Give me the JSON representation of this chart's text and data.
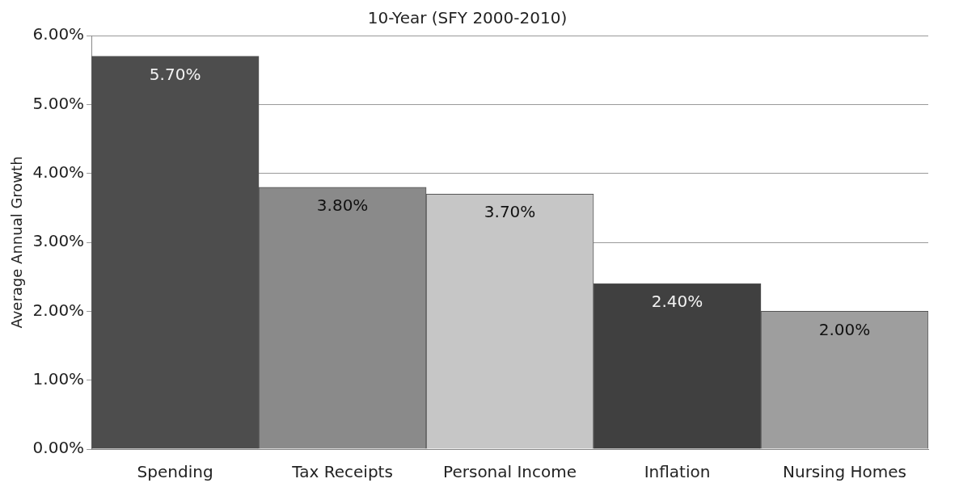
{
  "chart_data": {
    "type": "bar",
    "title": "10-Year (SFY 2000-2010)",
    "ylabel": "Average Annual Growth",
    "categories": [
      "Spending",
      "Tax Receipts",
      "Personal Income",
      "Inflation",
      "Nursing Homes"
    ],
    "values": [
      5.7,
      3.8,
      3.7,
      2.4,
      2.0
    ],
    "colors": [
      "#4d4d4d",
      "#8a8a8a",
      "#c6c6c6",
      "#404040",
      "#9e9e9e"
    ],
    "value_labels": [
      "5.70%",
      "3.80%",
      "3.70%",
      "2.40%",
      "2.00%"
    ],
    "ylim": [
      0,
      6
    ],
    "yticks": [
      {
        "value": 0,
        "label": "0.00%"
      },
      {
        "value": 1,
        "label": "1.00%"
      },
      {
        "value": 2,
        "label": "2.00%"
      },
      {
        "value": 3,
        "label": "3.00%"
      },
      {
        "value": 4,
        "label": "4.00%"
      },
      {
        "value": 5,
        "label": "5.00%"
      },
      {
        "value": 6,
        "label": "6.00%"
      }
    ],
    "grid": "y",
    "legend": false
  }
}
